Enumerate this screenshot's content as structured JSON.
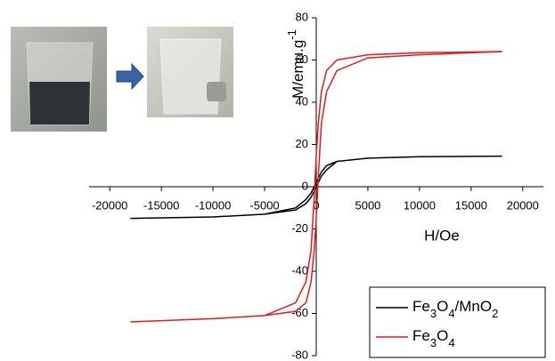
{
  "chart_data": {
    "type": "line",
    "x_label": "H/Oe",
    "y_label": "M/emu.g-1",
    "xlim": [
      -22000,
      22000
    ],
    "ylim": [
      -80,
      80
    ],
    "xticks": [
      -20000,
      -15000,
      -10000,
      -5000,
      0,
      5000,
      10000,
      15000,
      20000
    ],
    "yticks": [
      -80,
      -60,
      -40,
      -20,
      0,
      20,
      40,
      60,
      80
    ],
    "legend": "lower right",
    "x": [
      18000,
      10000,
      5000,
      2000,
      1000,
      500,
      200,
      0,
      -200,
      -500,
      -1000,
      -2000,
      -5000,
      -10000,
      -18000,
      -10000,
      -5000,
      -2000,
      -1000,
      -500,
      -200,
      0,
      200,
      500,
      1000,
      2000,
      5000,
      10000,
      18000
    ],
    "series": [
      {
        "name": "Fe3O4/MnO2",
        "color": "#000000",
        "values": [
          14.5,
          14.2,
          13.5,
          12,
          10,
          7,
          4,
          2,
          0,
          -3,
          -6,
          -10,
          -13,
          -14.3,
          -15,
          -14.3,
          -13,
          -11,
          -8,
          -5,
          -2,
          0,
          2,
          5,
          8,
          12,
          13.5,
          14.2,
          14.5
        ]
      },
      {
        "name": "Fe3O4",
        "color": "#e41a1c",
        "values": [
          64,
          63.5,
          62.5,
          60,
          55,
          45,
          30,
          15,
          -5,
          -30,
          -45,
          -55,
          -61,
          -62.5,
          -64,
          -62.5,
          -61,
          -59,
          -55,
          -45,
          -30,
          -15,
          5,
          30,
          45,
          55,
          61,
          62.5,
          64
        ]
      }
    ]
  }
}
